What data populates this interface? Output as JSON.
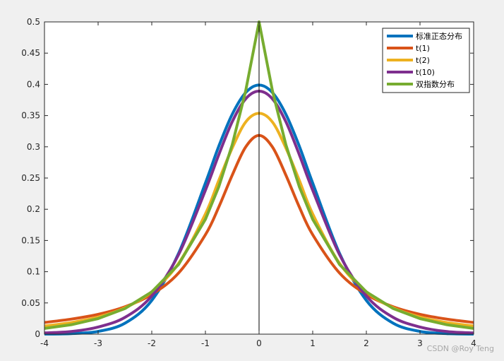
{
  "watermark": "CSDN @Roy Teng",
  "chart_data": {
    "type": "line",
    "title": "",
    "xlabel": "",
    "ylabel": "",
    "xlim": [
      -4,
      4
    ],
    "ylim": [
      0,
      0.5
    ],
    "xticks": [
      -4,
      -3,
      -2,
      -1,
      0,
      1,
      2,
      3,
      4
    ],
    "yticks": [
      0,
      0.05,
      0.1,
      0.15,
      0.2,
      0.25,
      0.3,
      0.35,
      0.4,
      0.45,
      0.5
    ],
    "xtick_labels": [
      "-4",
      "-3",
      "-2",
      "-1",
      "0",
      "1",
      "2",
      "3",
      "4"
    ],
    "ytick_labels": [
      "0",
      "0.05",
      "0.1",
      "0.15",
      "0.2",
      "0.25",
      "0.3",
      "0.35",
      "0.4",
      "0.45",
      "0.5"
    ],
    "grid": false,
    "legend_position": "top-right",
    "vertical_line_x": 0,
    "x": [
      -4,
      -3.5,
      -3,
      -2.5,
      -2,
      -1.5,
      -1,
      -0.75,
      -0.5,
      -0.25,
      0,
      0.25,
      0.5,
      0.75,
      1,
      1.5,
      2,
      2.5,
      3,
      3.5,
      4
    ],
    "series": [
      {
        "name": "标准正态分布",
        "color": "#0072BD",
        "values": [
          0.0001,
          0.0009,
          0.0044,
          0.0175,
          0.054,
          0.1295,
          0.242,
          0.3011,
          0.3521,
          0.3867,
          0.3989,
          0.3867,
          0.3521,
          0.3011,
          0.242,
          0.1295,
          0.054,
          0.0175,
          0.0044,
          0.0009,
          0.0001
        ]
      },
      {
        "name": "t(1)",
        "color": "#D95319",
        "values": [
          0.0187,
          0.0241,
          0.0318,
          0.0439,
          0.0637,
          0.0979,
          0.1592,
          0.2037,
          0.2546,
          0.2996,
          0.3183,
          0.2996,
          0.2546,
          0.2037,
          0.1592,
          0.0979,
          0.0637,
          0.0439,
          0.0318,
          0.0241,
          0.0187
        ]
      },
      {
        "name": "t(2)",
        "color": "#EDB120",
        "values": [
          0.0131,
          0.0186,
          0.0274,
          0.0422,
          0.068,
          0.1134,
          0.1925,
          0.2463,
          0.2981,
          0.3396,
          0.3536,
          0.3396,
          0.2981,
          0.2463,
          0.1925,
          0.1134,
          0.068,
          0.0422,
          0.0274,
          0.0186,
          0.0131
        ]
      },
      {
        "name": "t(10)",
        "color": "#7E2F8E",
        "values": [
          0.002,
          0.0042,
          0.0114,
          0.0269,
          0.0611,
          0.1274,
          0.2304,
          0.2875,
          0.3402,
          0.3767,
          0.3891,
          0.3767,
          0.3402,
          0.2875,
          0.2304,
          0.1274,
          0.0611,
          0.0269,
          0.0114,
          0.0042,
          0.002
        ]
      },
      {
        "name": "双指数分布",
        "color": "#77AC30",
        "values": [
          0.0092,
          0.0151,
          0.0249,
          0.041,
          0.0677,
          0.1116,
          0.1839,
          0.2362,
          0.3033,
          0.3894,
          0.5,
          0.3894,
          0.3033,
          0.2362,
          0.1839,
          0.1116,
          0.0677,
          0.041,
          0.0249,
          0.0151,
          0.0092
        ]
      }
    ]
  }
}
